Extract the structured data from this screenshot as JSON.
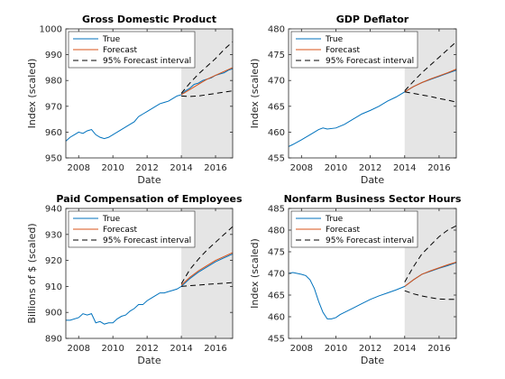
{
  "chart_data": [
    {
      "type": "line",
      "title": "Gross Domestic Product",
      "xlabel": "Date",
      "ylabel": "Index (scaled)",
      "xlim": [
        2007.25,
        2017.0
      ],
      "ylim": [
        950,
        1000
      ],
      "xticks": [
        2008,
        2010,
        2012,
        2014,
        2016
      ],
      "yticks": [
        950,
        960,
        970,
        980,
        990,
        1000
      ],
      "forecast_start": 2014.0,
      "legend": {
        "position": "top-left",
        "entries": [
          "True",
          "Forecast",
          "95% Forecast interval"
        ]
      },
      "series": [
        {
          "name": "True",
          "color": "#0072BD",
          "style": "solid",
          "x": [
            2007.25,
            2007.5,
            2007.75,
            2008.0,
            2008.25,
            2008.5,
            2008.75,
            2009.0,
            2009.25,
            2009.5,
            2009.75,
            2010.0,
            2010.25,
            2010.5,
            2010.75,
            2011.0,
            2011.25,
            2011.5,
            2011.75,
            2012.0,
            2012.25,
            2012.5,
            2012.75,
            2013.0,
            2013.25,
            2013.5,
            2013.75,
            2014.0,
            2014.25,
            2014.5,
            2014.75,
            2015.0,
            2015.25,
            2015.5,
            2015.75,
            2016.0,
            2016.25,
            2016.5,
            2016.75,
            2017.0
          ],
          "y": [
            956.5,
            958.0,
            959.0,
            960.0,
            959.5,
            960.5,
            961.0,
            959.0,
            958.0,
            957.5,
            958.0,
            959.0,
            960.0,
            961.0,
            962.0,
            963.0,
            964.0,
            966.0,
            967.0,
            968.0,
            969.0,
            970.0,
            971.0,
            971.5,
            972.0,
            973.0,
            974.0,
            974.5,
            976.0,
            977.0,
            978.5,
            979.0,
            980.0,
            980.5,
            981.0,
            982.0,
            982.5,
            983.0,
            984.0,
            984.5
          ]
        },
        {
          "name": "Forecast",
          "color": "#D95319",
          "style": "solid",
          "x": [
            2014.0,
            2014.5,
            2015.0,
            2015.5,
            2016.0,
            2016.5,
            2017.0
          ],
          "y": [
            974.5,
            976.5,
            978.5,
            980.5,
            982.0,
            983.5,
            985.0
          ]
        },
        {
          "name": "95% Forecast interval",
          "color": "#000000",
          "style": "dashed",
          "x": [
            2014.0,
            2014.5,
            2015.0,
            2015.5,
            2016.0,
            2016.5,
            2017.0
          ],
          "y": [
            975.0,
            979.0,
            982.5,
            985.5,
            988.5,
            992.0,
            995.0
          ]
        },
        {
          "name": "95% Forecast interval",
          "color": "#000000",
          "style": "dashed",
          "x": [
            2014.0,
            2014.5,
            2015.0,
            2015.5,
            2016.0,
            2016.5,
            2017.0
          ],
          "y": [
            974.0,
            973.8,
            974.0,
            974.5,
            975.0,
            975.5,
            976.0
          ]
        }
      ]
    },
    {
      "type": "line",
      "title": "GDP Deflator",
      "xlabel": "Date",
      "ylabel": "Index (scaled)",
      "xlim": [
        2007.25,
        2017.0
      ],
      "ylim": [
        455,
        480
      ],
      "xticks": [
        2008,
        2010,
        2012,
        2014,
        2016
      ],
      "yticks": [
        455,
        460,
        465,
        470,
        475,
        480
      ],
      "forecast_start": 2014.0,
      "legend": {
        "position": "top-right",
        "entries": [
          "True",
          "Forecast",
          "95% Forecast interval"
        ]
      },
      "series": [
        {
          "name": "True",
          "color": "#0072BD",
          "style": "solid",
          "x": [
            2007.25,
            2007.5,
            2008.0,
            2008.5,
            2009.0,
            2009.25,
            2009.5,
            2010.0,
            2010.5,
            2011.0,
            2011.5,
            2012.0,
            2012.5,
            2013.0,
            2013.5,
            2014.0,
            2014.5,
            2015.0,
            2015.5,
            2016.0,
            2016.5,
            2017.0
          ],
          "y": [
            457.2,
            457.6,
            458.5,
            459.5,
            460.5,
            460.8,
            460.6,
            460.8,
            461.5,
            462.5,
            463.5,
            464.2,
            465.0,
            466.0,
            466.8,
            467.8,
            468.8,
            469.6,
            470.2,
            470.8,
            471.4,
            472.0
          ]
        },
        {
          "name": "Forecast",
          "color": "#D95319",
          "style": "solid",
          "x": [
            2014.0,
            2014.5,
            2015.0,
            2015.5,
            2016.0,
            2016.5,
            2017.0
          ],
          "y": [
            467.8,
            468.8,
            469.6,
            470.3,
            470.9,
            471.5,
            472.2
          ]
        },
        {
          "name": "95% Forecast interval",
          "color": "#000000",
          "style": "dashed",
          "x": [
            2014.0,
            2014.5,
            2015.0,
            2015.5,
            2016.0,
            2016.5,
            2017.0
          ],
          "y": [
            468.0,
            469.8,
            471.5,
            473.0,
            474.5,
            476.0,
            477.5
          ]
        },
        {
          "name": "95% Forecast interval",
          "color": "#000000",
          "style": "dashed",
          "x": [
            2014.0,
            2014.5,
            2015.0,
            2015.5,
            2016.0,
            2016.5,
            2017.0
          ],
          "y": [
            467.8,
            467.5,
            467.2,
            466.9,
            466.5,
            466.2,
            465.8
          ]
        }
      ]
    },
    {
      "type": "line",
      "title": "Paid Compensation of Employees",
      "xlabel": "Date",
      "ylabel": "Billions of $ (scaled)",
      "xlim": [
        2007.25,
        2017.0
      ],
      "ylim": [
        890,
        940
      ],
      "xticks": [
        2008,
        2010,
        2012,
        2014,
        2016
      ],
      "yticks": [
        890,
        900,
        910,
        920,
        930,
        940
      ],
      "forecast_start": 2014.0,
      "legend": {
        "position": "top-left",
        "entries": [
          "True",
          "Forecast",
          "95% Forecast interval"
        ]
      },
      "series": [
        {
          "name": "True",
          "color": "#0072BD",
          "style": "solid",
          "x": [
            2007.25,
            2007.5,
            2008.0,
            2008.25,
            2008.5,
            2008.75,
            2009.0,
            2009.25,
            2009.5,
            2009.75,
            2010.0,
            2010.25,
            2010.5,
            2010.75,
            2011.0,
            2011.25,
            2011.5,
            2011.75,
            2012.0,
            2012.25,
            2012.5,
            2012.75,
            2013.0,
            2013.25,
            2013.5,
            2013.75,
            2014.0,
            2014.5,
            2015.0,
            2015.5,
            2016.0,
            2016.5,
            2017.0
          ],
          "y": [
            897.0,
            897.0,
            898.0,
            899.5,
            899.0,
            899.5,
            896.0,
            896.5,
            895.5,
            896.0,
            896.0,
            897.5,
            898.5,
            899.0,
            900.5,
            901.5,
            903.0,
            903.0,
            904.5,
            905.5,
            906.5,
            907.5,
            907.5,
            908.0,
            908.5,
            909.0,
            910.0,
            913.0,
            915.5,
            917.5,
            919.5,
            921.0,
            922.5
          ]
        },
        {
          "name": "Forecast",
          "color": "#D95319",
          "style": "solid",
          "x": [
            2014.0,
            2014.5,
            2015.0,
            2015.5,
            2016.0,
            2016.5,
            2017.0
          ],
          "y": [
            910.5,
            913.5,
            916.0,
            918.0,
            920.0,
            921.5,
            923.0
          ]
        },
        {
          "name": "95% Forecast interval",
          "color": "#000000",
          "style": "dashed",
          "x": [
            2014.0,
            2014.5,
            2015.0,
            2015.5,
            2016.0,
            2016.5,
            2017.0
          ],
          "y": [
            911.0,
            916.5,
            920.5,
            924.0,
            927.0,
            930.0,
            933.0
          ]
        },
        {
          "name": "95% Forecast interval",
          "color": "#000000",
          "style": "dashed",
          "x": [
            2014.0,
            2014.5,
            2015.0,
            2015.5,
            2016.0,
            2016.5,
            2017.0
          ],
          "y": [
            910.0,
            910.3,
            910.5,
            910.8,
            911.0,
            911.2,
            911.5
          ]
        }
      ]
    },
    {
      "type": "line",
      "title": "Nonfarm Business Sector Hours",
      "xlabel": "Date",
      "ylabel": "Index (scaled)",
      "xlim": [
        2007.25,
        2017.0
      ],
      "ylim": [
        455,
        485
      ],
      "xticks": [
        2008,
        2010,
        2012,
        2014,
        2016
      ],
      "yticks": [
        455,
        460,
        465,
        470,
        475,
        480,
        485
      ],
      "forecast_start": 2014.0,
      "legend": {
        "position": "top-left",
        "entries": [
          "True",
          "Forecast",
          "95% Forecast interval"
        ]
      },
      "series": [
        {
          "name": "True",
          "color": "#0072BD",
          "style": "solid",
          "x": [
            2007.25,
            2007.5,
            2008.0,
            2008.25,
            2008.5,
            2008.75,
            2009.0,
            2009.25,
            2009.5,
            2009.75,
            2010.0,
            2010.25,
            2010.5,
            2010.75,
            2011.0,
            2011.5,
            2012.0,
            2012.5,
            2013.0,
            2013.5,
            2014.0,
            2014.5,
            2015.0,
            2015.5,
            2016.0,
            2016.5,
            2017.0
          ],
          "y": [
            470.0,
            470.2,
            469.8,
            469.5,
            468.5,
            466.5,
            463.5,
            461.0,
            459.5,
            459.5,
            459.8,
            460.5,
            461.0,
            461.5,
            462.0,
            463.0,
            464.0,
            464.8,
            465.5,
            466.2,
            467.0,
            468.5,
            469.8,
            470.5,
            471.2,
            471.8,
            472.5
          ]
        },
        {
          "name": "Forecast",
          "color": "#D95319",
          "style": "solid",
          "x": [
            2014.0,
            2014.5,
            2015.0,
            2015.5,
            2016.0,
            2016.5,
            2017.0
          ],
          "y": [
            467.0,
            468.5,
            469.8,
            470.6,
            471.3,
            472.0,
            472.6
          ]
        },
        {
          "name": "95% Forecast interval",
          "color": "#000000",
          "style": "dashed",
          "x": [
            2014.0,
            2014.5,
            2015.0,
            2015.5,
            2016.0,
            2016.5,
            2017.0
          ],
          "y": [
            468.0,
            471.5,
            474.5,
            476.5,
            478.5,
            480.0,
            481.0
          ]
        },
        {
          "name": "95% Forecast interval",
          "color": "#000000",
          "style": "dashed",
          "x": [
            2014.0,
            2014.5,
            2015.0,
            2015.5,
            2016.0,
            2016.5,
            2017.0
          ],
          "y": [
            466.0,
            465.3,
            464.8,
            464.4,
            464.1,
            464.0,
            464.0
          ]
        }
      ]
    }
  ]
}
